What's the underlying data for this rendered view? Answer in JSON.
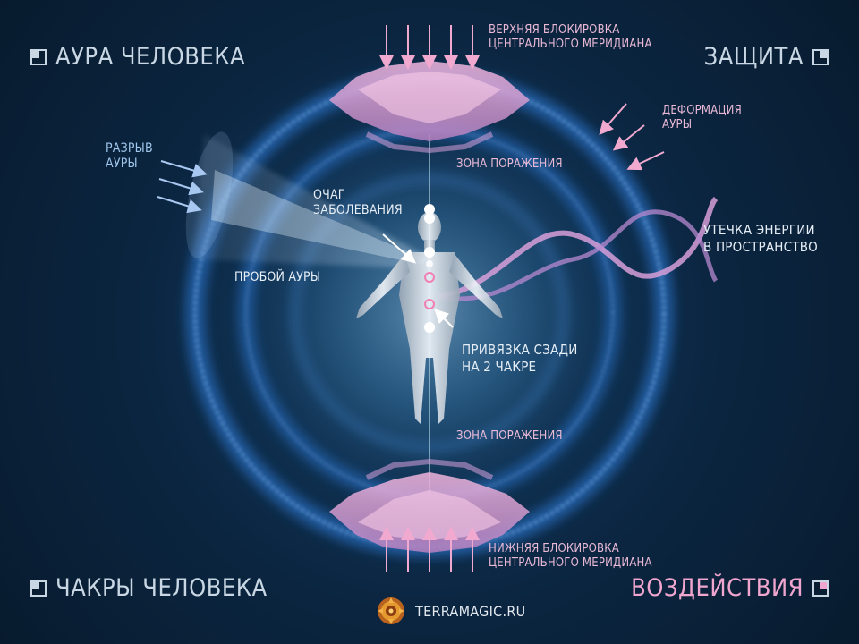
{
  "corners": {
    "top_left": "АУРА ЧЕЛОВЕКА",
    "top_right": "ЗАЩИТА",
    "bottom_left": "ЧАКРЫ ЧЕЛОВЕКА",
    "bottom_right": "ВОЗДЕЙСТВИЯ"
  },
  "labels": {
    "top_block_line1": "ВЕРХНЯЯ БЛОКИРОВКА",
    "top_block_line2": "ЦЕНТРАЛЬНОГО МЕРИДИАНА",
    "bottom_block_line1": "НИЖНЯЯ БЛОКИРОВКА",
    "bottom_block_line2": "ЦЕНТРАЛЬНОГО МЕРИДИАНА",
    "deformation_line1": "ДЕФОРМАЦИЯ",
    "deformation_line2": "АУРЫ",
    "zone_top": "ЗОНА ПОРАЖЕНИЯ",
    "zone_bottom": "ЗОНА ПОРАЖЕНИЯ",
    "rupture_line1": "РАЗРЫВ",
    "rupture_line2": "АУРЫ",
    "focus_line1": "ОЧАГ",
    "focus_line2": "ЗАБОЛЕВАНИЯ",
    "leak_line1": "УТЕЧКА ЭНЕРГИИ",
    "leak_line2": "В ПРОСТРАНСТВО",
    "breach": "ПРОБОЙ АУРЫ",
    "binding_line1": "ПРИВЯЗКА СЗАДИ",
    "binding_line2": "НА 2 ЧАКРЕ"
  },
  "logo": {
    "text": "TERRAMAGIC.RU"
  },
  "colors": {
    "background": "#0b2237",
    "aura_blue": "#4fa8ff",
    "pink_label": "#e9b9d6",
    "pink_arrow": "#f1a9cf",
    "accent_pink": "#f0a6cf"
  }
}
